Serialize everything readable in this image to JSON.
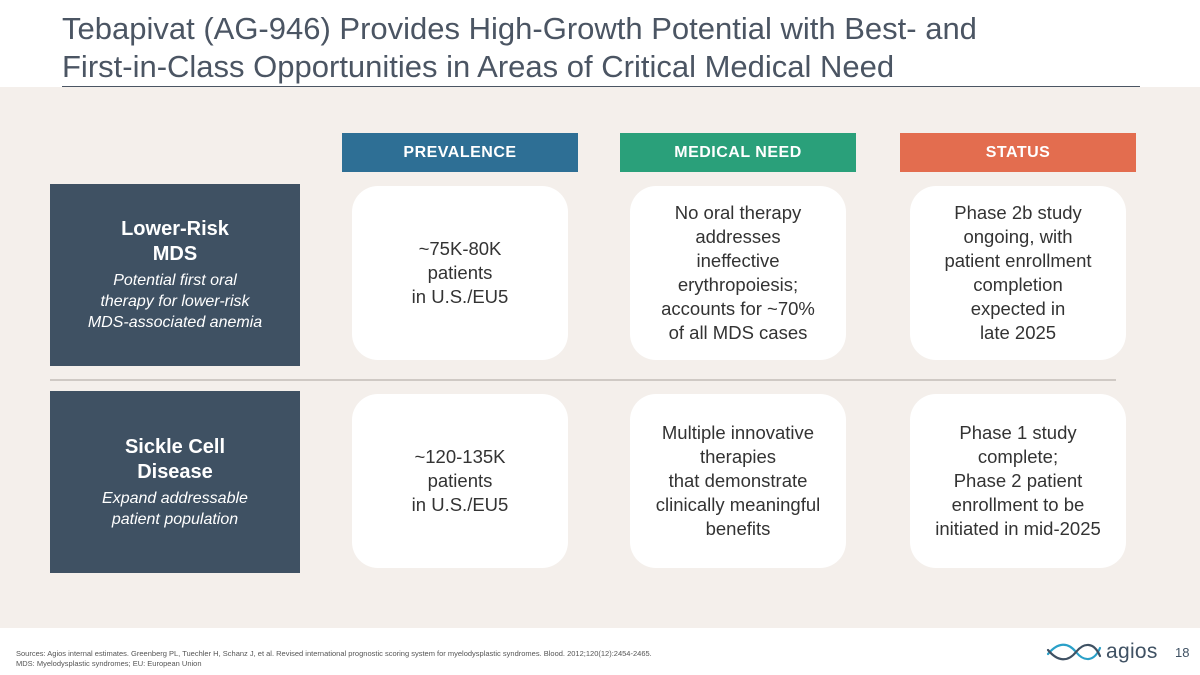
{
  "slide": {
    "title": "Tebapivat (AG-946) Provides High-Growth Potential with Best- and\nFirst-in-Class Opportunities in Areas of Critical Medical Need",
    "columns": [
      "PREVALENCE",
      "MEDICAL NEED",
      "STATUS"
    ],
    "rows": [
      {
        "title": "Lower-Risk\nMDS",
        "subtitle": "Potential first oral\ntherapy for lower-risk\nMDS-associated anemia",
        "prevalence": "~75K-80K\npatients\nin U.S./EU5",
        "medical_need": "No oral therapy\naddresses\nineffective\nerythropoiesis;\naccounts for ~70%\nof all MDS cases",
        "status": "Phase 2b study\nongoing, with\npatient enrollment\ncompletion\nexpected in\nlate 2025"
      },
      {
        "title": "Sickle Cell\nDisease",
        "subtitle": "Expand addressable\npatient population",
        "prevalence": "~120-135K\npatients\nin U.S./EU5",
        "medical_need": "Multiple innovative\ntherapies\nthat demonstrate\nclinically meaningful\nbenefits",
        "status": "Phase 1 study\ncomplete;\nPhase 2 patient\nenrollment to be\ninitiated in mid-2025"
      }
    ]
  },
  "footer": {
    "sources": "Sources: Agios internal estimates. Greenberg PL, Tuechler H, Schanz J, et al. Revised international prognostic scoring system for myelodysplastic syndromes. Blood. 2012;120(12):2454-2465.\nMDS: Myelodysplastic syndromes; EU: European Union",
    "logo_text": "agios",
    "page_number": "18"
  },
  "colors": {
    "prevalence": "#2e6f95",
    "medical_need": "#2aa07a",
    "status": "#e36d4f",
    "row_label": "#3f5163",
    "panel": "#f4efeb"
  },
  "icons": [
    "agios-wave-logo-icon"
  ]
}
